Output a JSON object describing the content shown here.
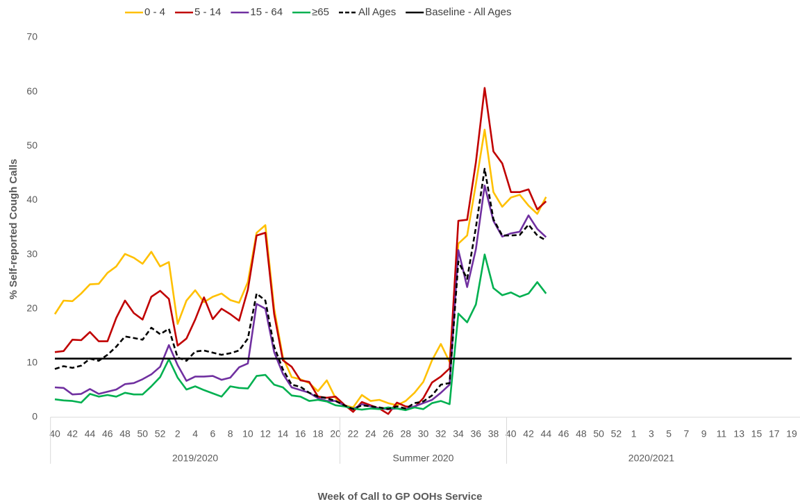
{
  "chart_data": {
    "type": "line",
    "y_label": "% Self-reported Cough Calls",
    "x_label": "Week of Call to GP OOHs Service",
    "categories": [
      40,
      null,
      42,
      null,
      44,
      null,
      46,
      null,
      48,
      null,
      50,
      null,
      52,
      null,
      2,
      null,
      4,
      null,
      6,
      null,
      8,
      null,
      10,
      null,
      12,
      null,
      14,
      null,
      16,
      null,
      18,
      null,
      20,
      null,
      22,
      null,
      24,
      null,
      26,
      null,
      28,
      null,
      30,
      null,
      32,
      null,
      34,
      null,
      36,
      null,
      38,
      null,
      40,
      null,
      42,
      null,
      44,
      null,
      46,
      null,
      48,
      null,
      50,
      null,
      52,
      null,
      1,
      null,
      3,
      null,
      5,
      null,
      7,
      null,
      9,
      null,
      11,
      null,
      13,
      null,
      15,
      null,
      17,
      null,
      19
    ],
    "category_groups": [
      {
        "name": "2019/2020",
        "count": 33
      },
      {
        "name": "Summer 2020",
        "count": 19
      },
      {
        "name": "2020/2021",
        "count": 33
      }
    ],
    "ylim": [
      0,
      70
    ],
    "yticks": [
      0,
      10,
      20,
      30,
      40,
      50,
      60,
      70
    ],
    "grid": false,
    "legend": "top",
    "series": [
      {
        "name": "0 - 4",
        "color": "#ffc000",
        "dash": false,
        "values": [
          19.0,
          21.5,
          21.4,
          22.8,
          24.5,
          24.6,
          26.6,
          27.8,
          30.1,
          29.4,
          28.3,
          30.5,
          27.8,
          28.6,
          17.2,
          21.5,
          23.4,
          21.2,
          22.2,
          22.8,
          21.6,
          21.1,
          24.9,
          34.0,
          35.4,
          20.0,
          11.0,
          7.4,
          7.0,
          6.3,
          4.8,
          6.8,
          3.5,
          2.2,
          1.8,
          4.1,
          3.0,
          3.2,
          2.6,
          2.2,
          3.0,
          4.5,
          6.5,
          10.5,
          13.5,
          10.2,
          32.0,
          33.5,
          43.0,
          53.0,
          41.5,
          38.8,
          40.5,
          41.0,
          39.0,
          37.5,
          40.6,
          null,
          null,
          null,
          null,
          null,
          null,
          null,
          null,
          null,
          null,
          null,
          null,
          null,
          null,
          null,
          null,
          null,
          null,
          null,
          null,
          null,
          null,
          null,
          null,
          null,
          null,
          null,
          null
        ]
      },
      {
        "name": "5 - 14",
        "color": "#c00000",
        "dash": false,
        "values": [
          12.0,
          12.2,
          14.3,
          14.2,
          15.7,
          14.0,
          14.0,
          18.3,
          21.5,
          19.2,
          18.0,
          22.2,
          23.3,
          21.8,
          13.2,
          14.5,
          18.0,
          22.1,
          18.1,
          20.0,
          19.0,
          17.8,
          23.5,
          33.5,
          34.0,
          19.0,
          10.5,
          9.3,
          6.8,
          6.5,
          3.8,
          3.6,
          3.8,
          2.3,
          1.0,
          2.8,
          2.2,
          1.6,
          0.6,
          2.7,
          2.0,
          1.8,
          3.5,
          6.4,
          7.5,
          9.0,
          36.2,
          36.4,
          47.0,
          60.7,
          49.0,
          46.8,
          41.5,
          41.5,
          42.0,
          38.3,
          39.8,
          null,
          null,
          null,
          null,
          null,
          null,
          null,
          null,
          null,
          null,
          null,
          null,
          null,
          null,
          null,
          null,
          null,
          null,
          null,
          null,
          null,
          null,
          null,
          null,
          null,
          null,
          null,
          null
        ]
      },
      {
        "name": "15 - 64",
        "color": "#7030a0",
        "dash": false,
        "values": [
          5.5,
          5.4,
          4.2,
          4.3,
          5.2,
          4.3,
          4.7,
          5.1,
          6.1,
          6.3,
          7.0,
          7.9,
          9.3,
          13.3,
          9.6,
          6.7,
          7.5,
          7.5,
          7.6,
          6.9,
          7.3,
          9.2,
          9.9,
          20.9,
          20.0,
          12.0,
          8.0,
          5.5,
          5.0,
          4.5,
          3.5,
          3.0,
          3.0,
          2.2,
          1.5,
          2.4,
          2.0,
          1.6,
          1.5,
          1.6,
          1.5,
          2.0,
          2.6,
          3.2,
          4.5,
          6.0,
          30.8,
          24.0,
          31.0,
          42.7,
          36.2,
          33.3,
          33.9,
          34.2,
          37.2,
          34.7,
          33.2,
          null,
          null,
          null,
          null,
          null,
          null,
          null,
          null,
          null,
          null,
          null,
          null,
          null,
          null,
          null,
          null,
          null,
          null,
          null,
          null,
          null,
          null,
          null,
          null,
          null,
          null,
          null,
          null
        ]
      },
      {
        "name": "≥65",
        "color": "#00b050",
        "dash": false,
        "values": [
          3.3,
          3.1,
          3.0,
          2.7,
          4.3,
          3.8,
          4.1,
          3.8,
          4.5,
          4.2,
          4.2,
          5.7,
          7.4,
          10.7,
          7.3,
          5.1,
          5.7,
          5.0,
          4.4,
          3.8,
          5.7,
          5.4,
          5.3,
          7.6,
          7.8,
          6.0,
          5.5,
          4.0,
          3.8,
          3.0,
          3.2,
          2.9,
          2.2,
          2.0,
          1.6,
          1.4,
          1.6,
          1.5,
          1.8,
          1.6,
          1.3,
          1.8,
          1.5,
          2.6,
          3.0,
          2.4,
          19.1,
          17.5,
          20.8,
          30.0,
          23.8,
          22.5,
          23.0,
          22.2,
          22.8,
          24.9,
          22.8,
          null,
          null,
          null,
          null,
          null,
          null,
          null,
          null,
          null,
          null,
          null,
          null,
          null,
          null,
          null,
          null,
          null,
          null,
          null,
          null,
          null,
          null,
          null,
          null,
          null,
          null,
          null,
          null
        ]
      },
      {
        "name": "All Ages",
        "color": "#000000",
        "dash": true,
        "values": [
          8.9,
          9.4,
          9.1,
          9.5,
          10.8,
          10.4,
          11.5,
          13.0,
          14.9,
          14.6,
          14.3,
          16.5,
          15.3,
          16.3,
          11.0,
          10.4,
          12.1,
          12.3,
          11.9,
          11.5,
          11.8,
          12.3,
          14.5,
          22.8,
          21.5,
          13.0,
          8.8,
          6.0,
          5.6,
          4.5,
          3.8,
          3.5,
          3.0,
          2.2,
          1.5,
          2.2,
          2.0,
          1.8,
          1.5,
          2.0,
          1.6,
          2.6,
          2.9,
          4.0,
          6.0,
          6.3,
          28.7,
          25.5,
          35.0,
          45.8,
          36.5,
          33.5,
          33.5,
          33.6,
          35.5,
          33.5,
          32.6,
          null,
          null,
          null,
          null,
          null,
          null,
          null,
          null,
          null,
          null,
          null,
          null,
          null,
          null,
          null,
          null,
          null,
          null,
          null,
          null,
          null,
          null,
          null,
          null,
          null,
          null,
          null,
          null
        ]
      },
      {
        "name": "Baseline - All Ages",
        "color": "#000000",
        "dash": false,
        "values": [
          10.8,
          10.8,
          10.8,
          10.8,
          10.8,
          10.8,
          10.8,
          10.8,
          10.8,
          10.8,
          10.8,
          10.8,
          10.8,
          10.8,
          10.8,
          10.8,
          10.8,
          10.8,
          10.8,
          10.8,
          10.8,
          10.8,
          10.8,
          10.8,
          10.8,
          10.8,
          10.8,
          10.8,
          10.8,
          10.8,
          10.8,
          10.8,
          10.8,
          10.8,
          10.8,
          10.8,
          10.8,
          10.8,
          10.8,
          10.8,
          10.8,
          10.8,
          10.8,
          10.8,
          10.8,
          10.8,
          10.8,
          10.8,
          10.8,
          10.8,
          10.8,
          10.8,
          10.8,
          10.8,
          10.8,
          10.8,
          10.8,
          10.8,
          10.8,
          10.8,
          10.8,
          10.8,
          10.8,
          10.8,
          10.8,
          10.8,
          10.8,
          10.8,
          10.8,
          10.8,
          10.8,
          10.8,
          10.8,
          10.8,
          10.8,
          10.8,
          10.8,
          10.8,
          10.8,
          10.8,
          10.8,
          10.8,
          10.8,
          10.8,
          10.8
        ]
      }
    ]
  }
}
